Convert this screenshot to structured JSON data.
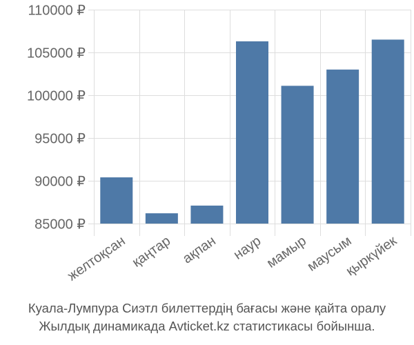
{
  "chart_data": {
    "type": "bar",
    "categories": [
      "желтоқсан",
      "қаңтар",
      "ақпан",
      "наур",
      "мамыр",
      "маусым",
      "қыркүйек"
    ],
    "values": [
      90400,
      86200,
      87100,
      106300,
      101100,
      103000,
      106500
    ],
    "yticks": [
      "85000 ₽",
      "90000 ₽",
      "95000 ₽",
      "100000 ₽",
      "105000 ₽",
      "110000 ₽"
    ],
    "ylim": [
      85000,
      110000
    ],
    "grid": true,
    "bar_color": "#4e79a7"
  },
  "caption": {
    "line1": "Куала-Лумпура Сиэтл билеттердің бағасы және қайта оралу",
    "line2": "Жылдық динамикада Avticket.kz статистикасы бойынша."
  }
}
